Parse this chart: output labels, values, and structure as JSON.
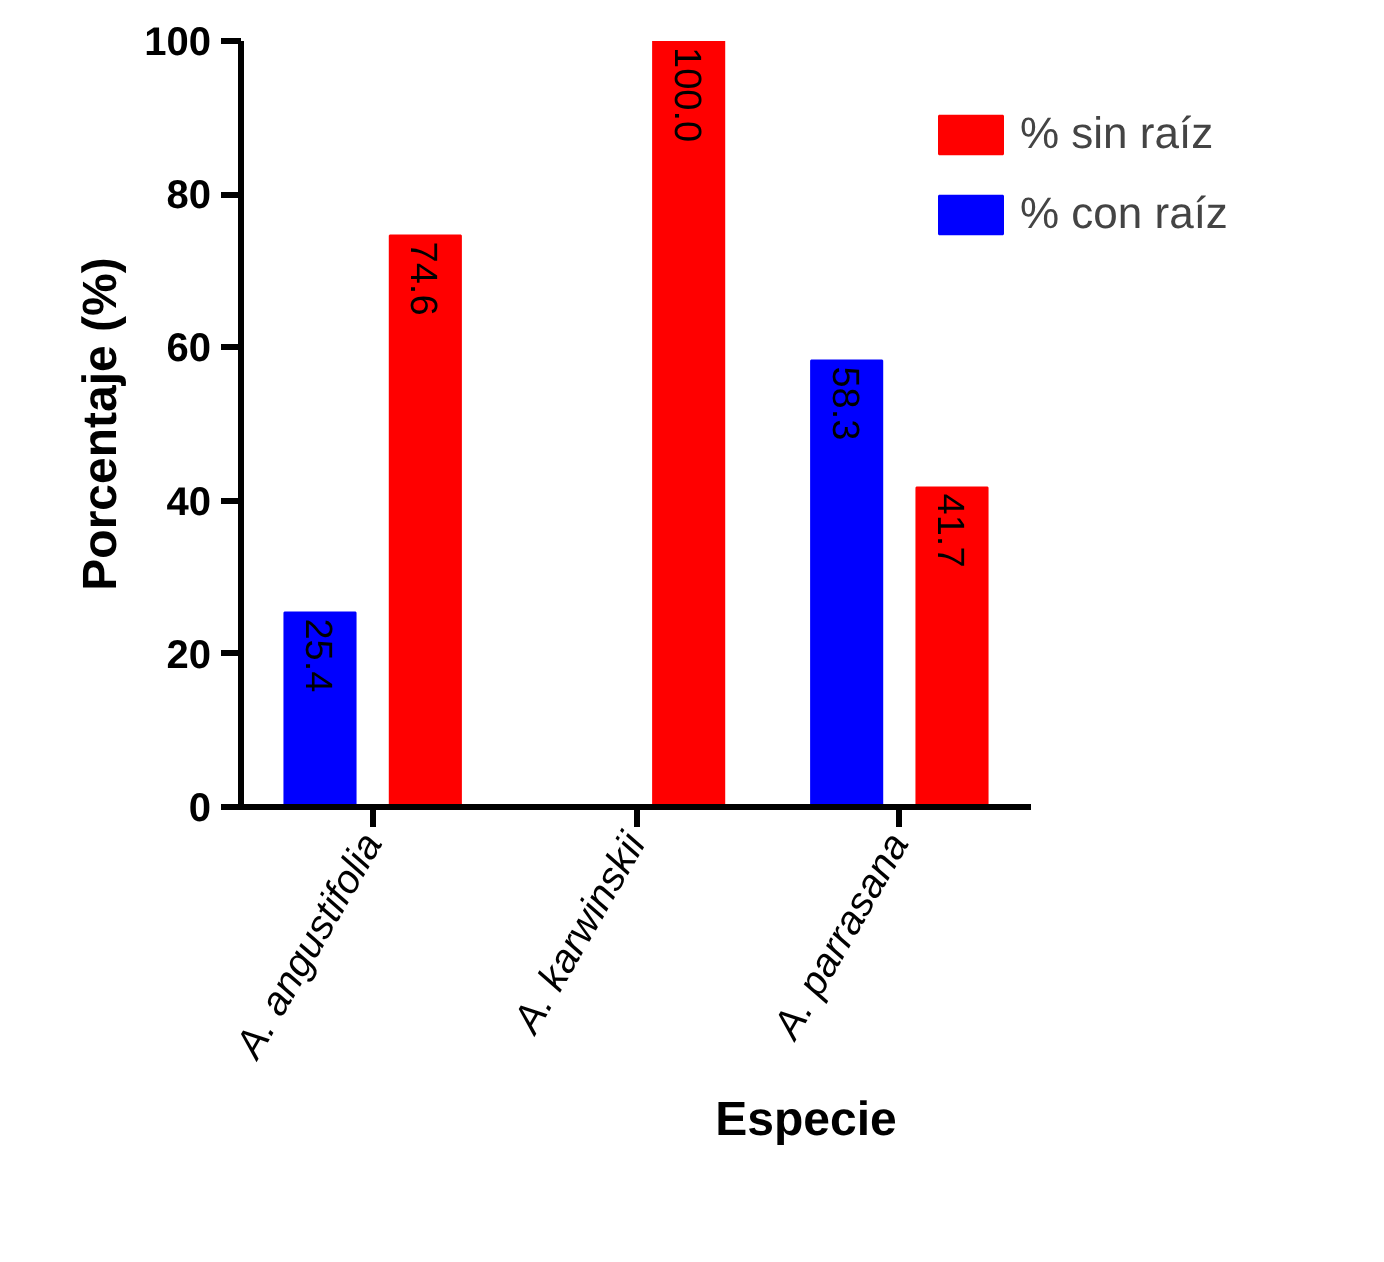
{
  "chart_data": {
    "type": "bar",
    "xlabel": "Especie",
    "ylabel": "Porcentaje (%)",
    "categories": [
      "A. angustifolia",
      "A. karwinskii",
      "A. parrasana"
    ],
    "series": [
      {
        "name": "% sin raíz",
        "color": "#ff0000",
        "values": [
          74.6,
          100.0,
          41.7
        ],
        "value_labels": [
          "74.6",
          "100.0",
          "41.7"
        ]
      },
      {
        "name": "% con raíz",
        "color": "#0000ff",
        "values": [
          25.4,
          null,
          58.3
        ],
        "value_labels": [
          "25.4",
          null,
          "58.3"
        ]
      }
    ],
    "ylim": [
      0,
      100
    ],
    "yticks": [
      0,
      20,
      40,
      60,
      80,
      100
    ],
    "grid": false,
    "legend": "top right"
  }
}
